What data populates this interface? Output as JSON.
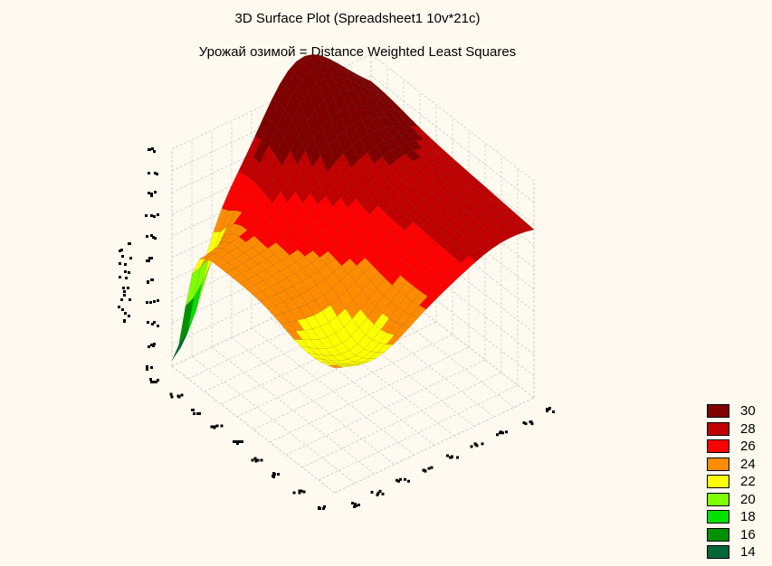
{
  "chart_data": {
    "type": "surface",
    "title": "3D Surface Plot (Spreadsheet1 10v*21c)",
    "subtitle": "Урожай озимой = Distance Weighted Least Squares",
    "zlim": [
      12,
      32
    ],
    "legend_placement": "bottom-right",
    "legend": [
      {
        "label": "30",
        "color": "#800000"
      },
      {
        "label": "28",
        "color": "#c00000"
      },
      {
        "label": "26",
        "color": "#ff0000"
      },
      {
        "label": "24",
        "color": "#ff8c00"
      },
      {
        "label": "22",
        "color": "#ffff00"
      },
      {
        "label": "20",
        "color": "#80ff00"
      },
      {
        "label": "18",
        "color": "#00e000"
      },
      {
        "label": "16",
        "color": "#009000"
      },
      {
        "label": "14",
        "color": "#006838"
      }
    ]
  }
}
